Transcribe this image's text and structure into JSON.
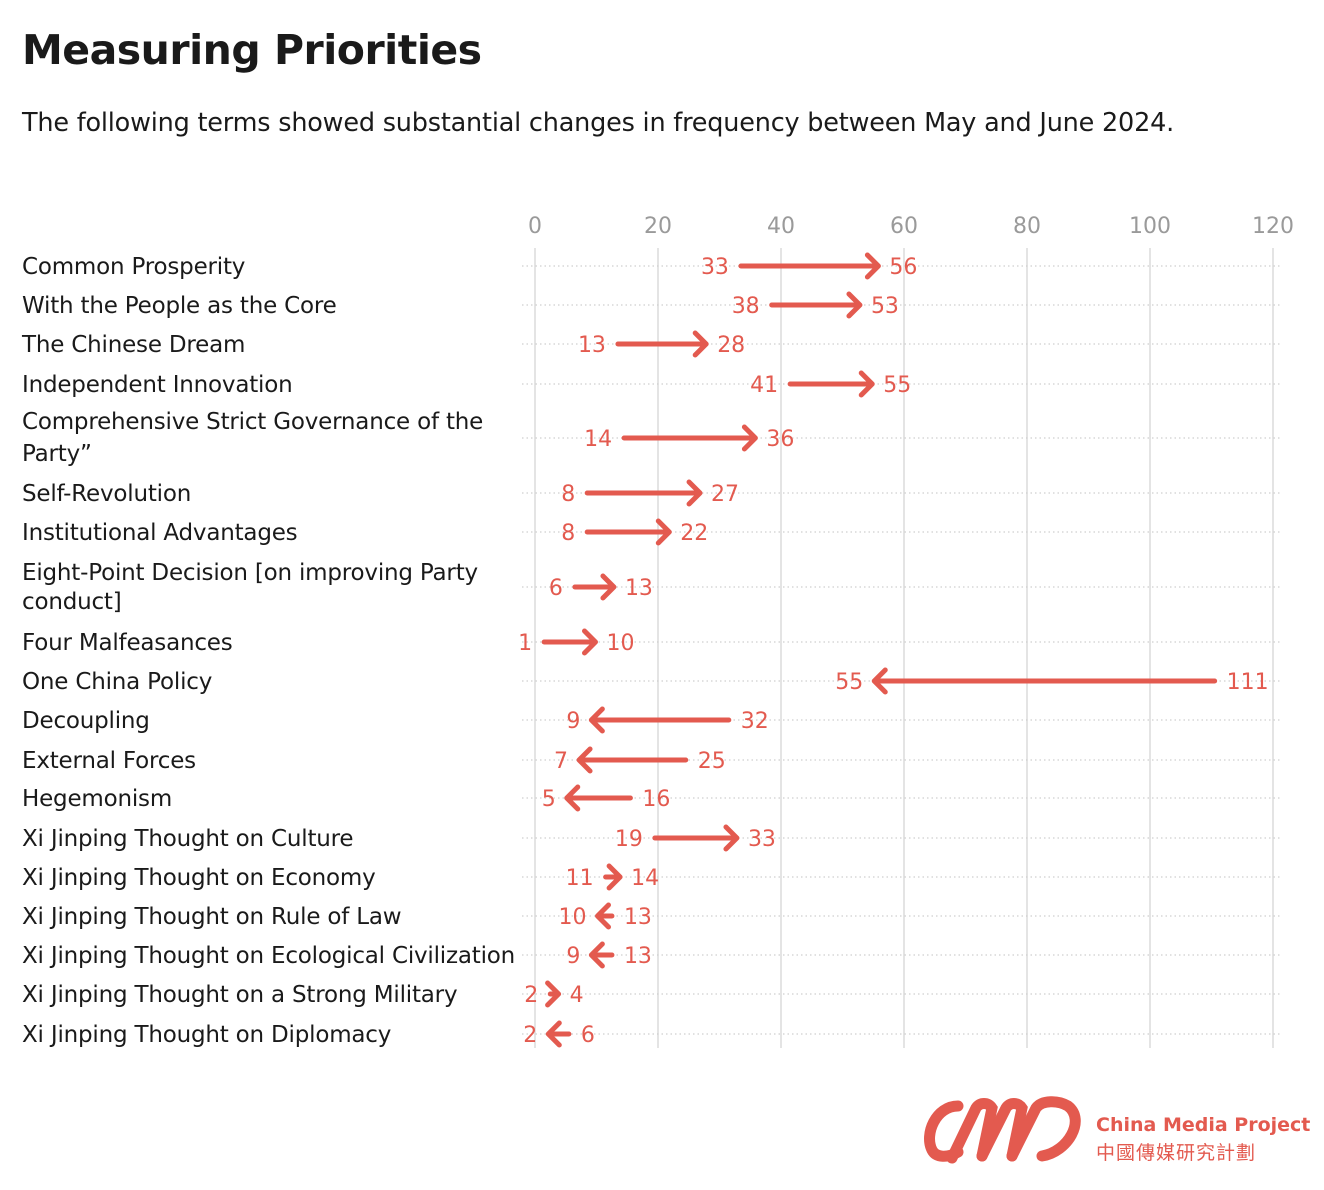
{
  "title": "Measuring Priorities",
  "subtitle": "The following terms showed substantial changes in frequency between May and June 2024.",
  "brand": {
    "name": "China Media Project",
    "name_zh": "中國傳媒研究計劃",
    "color": "#e35a4f"
  },
  "chart_data": {
    "type": "arrow-dot",
    "xlim": [
      0,
      120
    ],
    "ticks": [
      "0",
      "20",
      "40",
      "60",
      "80",
      "100",
      "120"
    ],
    "tick_values": [
      0,
      20,
      40,
      60,
      80,
      100,
      120
    ],
    "grid": true,
    "color": "#e35a4f",
    "rows": [
      {
        "label": "Common Prosperity",
        "from": 33,
        "to": 56
      },
      {
        "label": "With the People as the Core",
        "from": 38,
        "to": 53
      },
      {
        "label": "The Chinese Dream",
        "from": 13,
        "to": 28
      },
      {
        "label": "Independent Innovation",
        "from": 41,
        "to": 55
      },
      {
        "label": "Comprehensive Strict Governance of the Party”",
        "from": 14,
        "to": 36
      },
      {
        "label": "Self-Revolution",
        "from": 8,
        "to": 27
      },
      {
        "label": "Institutional Advantages",
        "from": 8,
        "to": 22
      },
      {
        "label": "Eight-Point Decision [on improving Party conduct]",
        "from": 6,
        "to": 13
      },
      {
        "label": "Four Malfeasances",
        "from": 1,
        "to": 10
      },
      {
        "label": "One China Policy",
        "from": 111,
        "to": 55
      },
      {
        "label": "Decoupling",
        "from": 32,
        "to": 9
      },
      {
        "label": "External Forces",
        "from": 25,
        "to": 7
      },
      {
        "label": "Hegemonism",
        "from": 16,
        "to": 5
      },
      {
        "label": "Xi Jinping Thought on Culture",
        "from": 19,
        "to": 33
      },
      {
        "label": "Xi Jinping Thought on Economy",
        "from": 11,
        "to": 14
      },
      {
        "label": "Xi Jinping Thought on Rule of Law",
        "from": 13,
        "to": 10
      },
      {
        "label": "Xi Jinping Thought on Ecological Civilization",
        "from": 13,
        "to": 9
      },
      {
        "label": "Xi Jinping Thought on a Strong Military",
        "from": 2,
        "to": 4
      },
      {
        "label": "Xi Jinping Thought on Diplomacy",
        "from": 6,
        "to": 2
      }
    ]
  }
}
